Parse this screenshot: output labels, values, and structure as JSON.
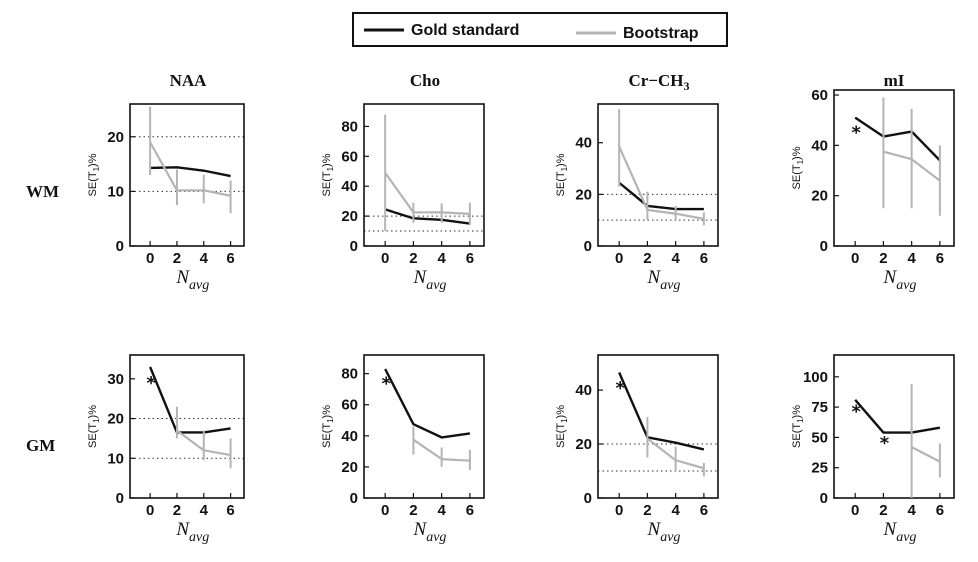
{
  "legend": {
    "gold_label": "Gold standard",
    "boot_label": "Bootstrap",
    "gold_color": "#111111",
    "boot_color": "#b4b4b4"
  },
  "rows": [
    "WM",
    "GM"
  ],
  "columns": [
    "NAA",
    "Cho",
    "Cr−CH",
    "mI"
  ],
  "cr_subscript": "3",
  "ylabel": {
    "main": "SE(T",
    "sub": "1",
    "tail": ")%"
  },
  "xlabel": {
    "main": "N",
    "sub": "avg"
  },
  "chart_data": [
    {
      "type": "line",
      "row": "WM",
      "title": "NAA",
      "x": [
        0,
        2,
        4,
        6
      ],
      "ylim": [
        0,
        26
      ],
      "yticks": [
        0,
        10,
        20
      ],
      "ref_lines": [
        10,
        20
      ],
      "series": [
        {
          "name": "Gold standard",
          "values": [
            14.3,
            14.4,
            13.8,
            12.8
          ]
        },
        {
          "name": "Bootstrap",
          "values": [
            19,
            10.2,
            10.2,
            9.2
          ],
          "err_low": [
            13,
            7.5,
            7.8,
            6
          ],
          "err_high": [
            25.5,
            14,
            13,
            12
          ]
        }
      ],
      "markers": []
    },
    {
      "type": "line",
      "row": "WM",
      "title": "Cho",
      "x": [
        0,
        2,
        4,
        6
      ],
      "ylim": [
        0,
        95
      ],
      "yticks": [
        0,
        20,
        40,
        60,
        80
      ],
      "ref_lines": [
        10,
        20
      ],
      "series": [
        {
          "name": "Gold standard",
          "values": [
            24.5,
            18.5,
            17.5,
            15
          ]
        },
        {
          "name": "Bootstrap",
          "values": [
            49,
            22.5,
            22.5,
            21.5
          ],
          "err_low": [
            10,
            15.5,
            15.5,
            14
          ],
          "err_high": [
            88,
            29,
            28.5,
            29
          ]
        }
      ],
      "markers": []
    },
    {
      "type": "line",
      "row": "WM",
      "title": "Cr-CH3",
      "x": [
        0,
        2,
        4,
        6
      ],
      "ylim": [
        0,
        55
      ],
      "yticks": [
        0,
        20,
        40
      ],
      "ref_lines": [
        10,
        20
      ],
      "series": [
        {
          "name": "Gold standard",
          "values": [
            24.5,
            15.5,
            14.3,
            14.3
          ]
        },
        {
          "name": "Bootstrap",
          "values": [
            38.5,
            14,
            12.5,
            10.5
          ],
          "err_low": [
            23,
            10,
            10,
            8
          ],
          "err_high": [
            53,
            21,
            15.5,
            13
          ]
        }
      ],
      "markers": []
    },
    {
      "type": "line",
      "row": "WM",
      "title": "mI",
      "x": [
        0,
        2,
        4,
        6
      ],
      "ylim": [
        0,
        62
      ],
      "yticks": [
        0,
        20,
        40,
        60
      ],
      "ref_lines": [],
      "series": [
        {
          "name": "Gold standard",
          "values": [
            51,
            43.5,
            45.5,
            34
          ]
        },
        {
          "name": "Bootstrap",
          "values": [
            null,
            37.5,
            34.5,
            26
          ],
          "err_low": [
            null,
            15,
            15,
            12
          ],
          "err_high": [
            null,
            59,
            54.5,
            40
          ]
        }
      ],
      "markers": [
        {
          "x": 0,
          "y": 46
        }
      ]
    },
    {
      "type": "line",
      "row": "GM",
      "title": "NAA",
      "x": [
        0,
        2,
        4,
        6
      ],
      "ylim": [
        0,
        36
      ],
      "yticks": [
        0,
        10,
        20,
        30
      ],
      "ref_lines": [
        10,
        20
      ],
      "series": [
        {
          "name": "Gold standard",
          "values": [
            33,
            16.5,
            16.5,
            17.5
          ]
        },
        {
          "name": "Bootstrap",
          "values": [
            null,
            17,
            12,
            10.8
          ],
          "err_low": [
            null,
            15,
            9.5,
            7.5
          ],
          "err_high": [
            null,
            23,
            17,
            15
          ]
        }
      ],
      "markers": [
        {
          "x": 0,
          "y": 29.5
        }
      ]
    },
    {
      "type": "line",
      "row": "GM",
      "title": "Cho",
      "x": [
        0,
        2,
        4,
        6
      ],
      "ylim": [
        0,
        92
      ],
      "yticks": [
        0,
        20,
        40,
        60,
        80
      ],
      "ref_lines": [],
      "series": [
        {
          "name": "Gold standard",
          "values": [
            83,
            47.5,
            39,
            41.5
          ]
        },
        {
          "name": "Bootstrap",
          "values": [
            null,
            37.5,
            25,
            24
          ],
          "err_low": [
            null,
            28,
            20,
            18
          ],
          "err_high": [
            null,
            46,
            32.5,
            31
          ]
        }
      ],
      "markers": [
        {
          "x": 0,
          "y": 75
        }
      ]
    },
    {
      "type": "line",
      "row": "GM",
      "title": "Cr-CH3",
      "x": [
        0,
        2,
        4,
        6
      ],
      "ylim": [
        0,
        53
      ],
      "yticks": [
        0,
        20,
        40
      ],
      "ref_lines": [
        10,
        20
      ],
      "series": [
        {
          "name": "Gold standard",
          "values": [
            46.5,
            22.5,
            20.5,
            18
          ]
        },
        {
          "name": "Bootstrap",
          "values": [
            null,
            22,
            14,
            11
          ],
          "err_low": [
            null,
            15,
            10,
            8
          ],
          "err_high": [
            null,
            30,
            19,
            13
          ]
        }
      ],
      "markers": [
        {
          "x": 0,
          "y": 41.5
        }
      ]
    },
    {
      "type": "line",
      "row": "GM",
      "title": "mI",
      "x": [
        0,
        2,
        4,
        6
      ],
      "ylim": [
        0,
        118
      ],
      "yticks": [
        0,
        25,
        50,
        75,
        100
      ],
      "ref_lines": [],
      "series": [
        {
          "name": "Gold standard",
          "values": [
            81,
            54,
            54,
            58
          ]
        },
        {
          "name": "Bootstrap",
          "values": [
            null,
            null,
            42,
            30
          ],
          "err_low": [
            null,
            null,
            0,
            17
          ],
          "err_high": [
            null,
            null,
            94,
            45
          ]
        }
      ],
      "markers": [
        {
          "x": 0,
          "y": 73
        },
        {
          "x": 2,
          "y": 47
        }
      ]
    }
  ]
}
